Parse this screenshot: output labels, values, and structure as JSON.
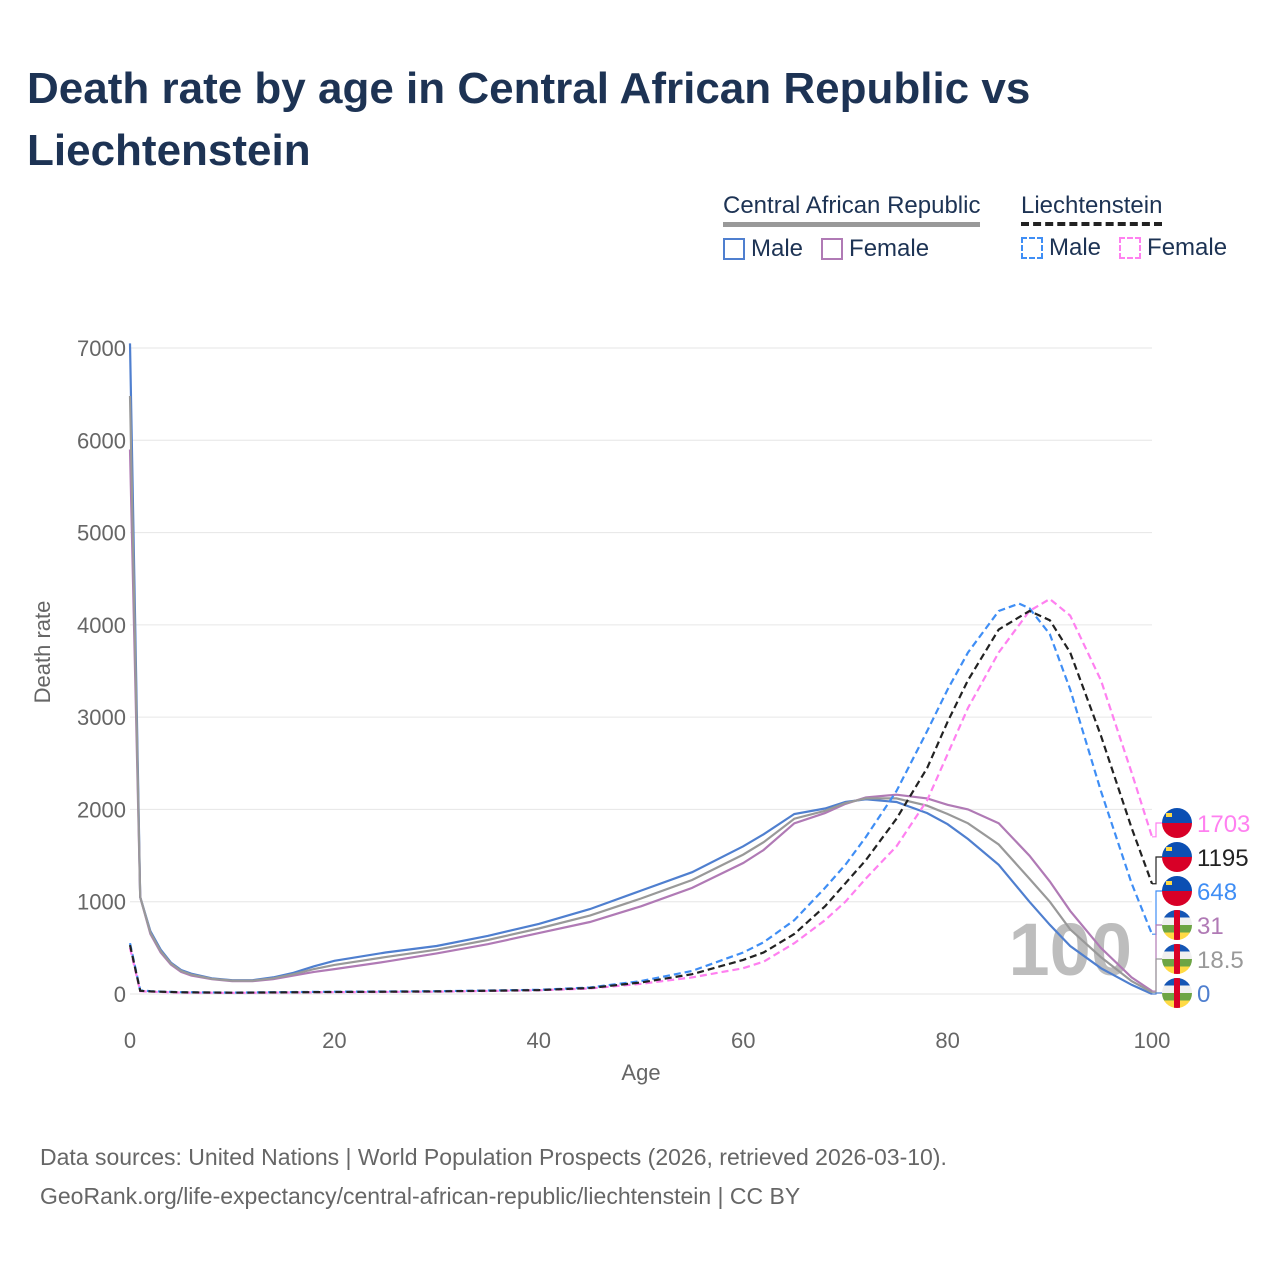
{
  "title": "Death rate by age in Central African Republic vs Liechtenstein",
  "legend": {
    "groups": [
      {
        "name": "Central African Republic",
        "items": [
          "Male",
          "Female"
        ]
      },
      {
        "name": "Liechtenstein",
        "items": [
          "Male",
          "Female"
        ]
      }
    ]
  },
  "source": {
    "line1": "Data sources: United Nations | World Population Prospects (2026, retrieved 2026-03-10).",
    "line2": "GeoRank.org/life-expectancy/central-african-republic/liechtenstein | CC BY"
  },
  "chart_data": {
    "type": "line",
    "title": "Death rate by age in Central African Republic vs Liechtenstein",
    "xlabel": "Age",
    "ylabel": "Death rate",
    "xlim": [
      0,
      100
    ],
    "ylim": [
      0,
      7000
    ],
    "xticks": [
      0,
      20,
      40,
      60,
      80,
      100
    ],
    "yticks": [
      0,
      1000,
      2000,
      3000,
      4000,
      5000,
      6000,
      7000
    ],
    "highlight_age": "100",
    "series": [
      {
        "name": "Central African Republic Male",
        "color": "#4f7fcf",
        "dash": false,
        "end_label": "0",
        "x": [
          0,
          1,
          2,
          3,
          4,
          5,
          6,
          8,
          10,
          12,
          14,
          16,
          18,
          20,
          25,
          30,
          35,
          40,
          45,
          50,
          55,
          60,
          62,
          65,
          68,
          70,
          72,
          75,
          78,
          80,
          82,
          85,
          88,
          90,
          92,
          95,
          98,
          100
        ],
        "y": [
          7050,
          1050,
          680,
          480,
          340,
          260,
          220,
          170,
          150,
          150,
          180,
          230,
          300,
          360,
          450,
          520,
          630,
          760,
          920,
          1120,
          1320,
          1600,
          1730,
          1950,
          2010,
          2080,
          2110,
          2080,
          1960,
          1840,
          1680,
          1400,
          1000,
          750,
          520,
          280,
          100,
          0
        ]
      },
      {
        "name": "Central African Republic Female",
        "color": "#b07ab5",
        "dash": false,
        "end_label": "31",
        "x": [
          0,
          1,
          2,
          3,
          4,
          5,
          6,
          8,
          10,
          12,
          14,
          16,
          18,
          20,
          25,
          30,
          35,
          40,
          45,
          50,
          55,
          60,
          62,
          65,
          68,
          70,
          72,
          75,
          78,
          80,
          82,
          85,
          88,
          90,
          92,
          95,
          98,
          100
        ],
        "y": [
          5900,
          1050,
          650,
          450,
          320,
          240,
          200,
          160,
          140,
          140,
          160,
          200,
          240,
          270,
          350,
          440,
          540,
          660,
          780,
          950,
          1150,
          1420,
          1560,
          1850,
          1960,
          2060,
          2130,
          2160,
          2120,
          2050,
          2000,
          1850,
          1500,
          1220,
          900,
          500,
          180,
          31
        ]
      },
      {
        "name": "Central African Republic",
        "color": "#999999",
        "dash": false,
        "end_label": "18.5",
        "x": [
          0,
          1,
          2,
          3,
          4,
          5,
          6,
          8,
          10,
          12,
          14,
          16,
          18,
          20,
          25,
          30,
          35,
          40,
          45,
          50,
          55,
          60,
          62,
          65,
          68,
          70,
          72,
          75,
          78,
          80,
          82,
          85,
          88,
          90,
          92,
          95,
          98,
          100
        ],
        "y": [
          6480,
          1050,
          665,
          465,
          330,
          250,
          210,
          165,
          145,
          145,
          170,
          215,
          270,
          315,
          400,
          480,
          585,
          710,
          850,
          1035,
          1235,
          1510,
          1645,
          1900,
          1985,
          2070,
          2120,
          2120,
          2040,
          1950,
          1850,
          1620,
          1250,
          1000,
          700,
          400,
          140,
          18.5
        ]
      },
      {
        "name": "Liechtenstein Male",
        "color": "#3f8ef5",
        "dash": true,
        "end_label": "648",
        "x": [
          0,
          1,
          2,
          5,
          10,
          20,
          30,
          40,
          45,
          50,
          55,
          60,
          62,
          65,
          68,
          70,
          72,
          75,
          78,
          80,
          82,
          85,
          87,
          88,
          90,
          92,
          95,
          98,
          100
        ],
        "y": [
          550,
          40,
          30,
          20,
          15,
          25,
          30,
          45,
          70,
          140,
          250,
          450,
          560,
          800,
          1150,
          1400,
          1700,
          2200,
          2850,
          3300,
          3700,
          4150,
          4230,
          4180,
          3900,
          3300,
          2200,
          1200,
          648
        ]
      },
      {
        "name": "Liechtenstein Female",
        "color": "#ff80f0",
        "dash": true,
        "end_label": "1703",
        "x": [
          0,
          1,
          2,
          5,
          10,
          20,
          30,
          40,
          45,
          50,
          55,
          60,
          62,
          65,
          68,
          70,
          72,
          75,
          78,
          80,
          82,
          85,
          88,
          90,
          92,
          95,
          98,
          100
        ],
        "y": [
          500,
          30,
          25,
          15,
          12,
          20,
          25,
          40,
          60,
          110,
          180,
          280,
          350,
          550,
          800,
          1000,
          1250,
          1600,
          2100,
          2600,
          3100,
          3700,
          4150,
          4280,
          4100,
          3400,
          2400,
          1703
        ]
      },
      {
        "name": "Liechtenstein",
        "color": "#222222",
        "dash": true,
        "end_label": "1195",
        "x": [
          0,
          1,
          2,
          5,
          10,
          20,
          30,
          40,
          45,
          50,
          55,
          60,
          62,
          65,
          68,
          70,
          72,
          75,
          78,
          80,
          82,
          85,
          88,
          90,
          92,
          95,
          98,
          100
        ],
        "y": [
          530,
          35,
          28,
          18,
          14,
          22,
          28,
          42,
          65,
          125,
          215,
          370,
          450,
          650,
          950,
          1200,
          1450,
          1900,
          2450,
          2950,
          3400,
          3950,
          4150,
          4050,
          3700,
          2800,
          1800,
          1195
        ]
      }
    ]
  }
}
